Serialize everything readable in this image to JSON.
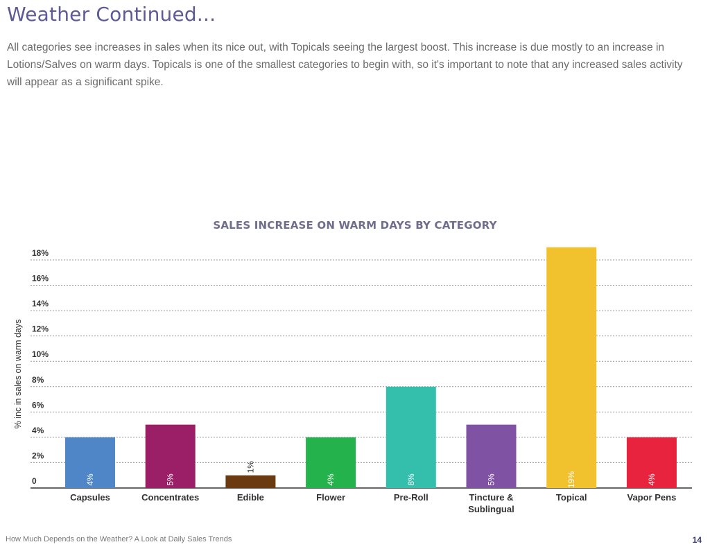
{
  "page": {
    "title": "Weather Continued...",
    "intro": "All categories see increases in sales when its nice out, with Topicals seeing the largest boost. This increase is due mostly to an increase in Lotions/Salves on warm days. Topicals is one of the smallest categories to begin with, so it's important to note that any increased sales activity will appear as a significant spike.",
    "footer": "How Much Depends on the Weather? A Look at Daily Sales Trends",
    "page_number": "14"
  },
  "chart_data": {
    "type": "bar",
    "title": "SALES INCREASE ON WARM DAYS BY CATEGORY",
    "ylabel": "% inc in sales on warm days",
    "xlabel": "",
    "categories": [
      "Capsules",
      "Concentrates",
      "Edible",
      "Flower",
      "Pre-Roll",
      "Tincture & Sublingual",
      "Topical",
      "Vapor Pens"
    ],
    "category_lines": [
      [
        "Capsules"
      ],
      [
        "Concentrates"
      ],
      [
        "Edible"
      ],
      [
        "Flower"
      ],
      [
        "Pre-Roll"
      ],
      [
        "Tincture &",
        "Sublingual"
      ],
      [
        "Topical"
      ],
      [
        "Vapor Pens"
      ]
    ],
    "values": [
      4,
      5,
      1,
      4,
      8,
      5,
      19,
      4
    ],
    "data_labels": [
      "4%",
      "5%",
      "1%",
      "4%",
      "8%",
      "5%",
      "19%",
      "4%"
    ],
    "colors": [
      "#4f86c8",
      "#9b1f66",
      "#6b3a10",
      "#23b24b",
      "#34bfad",
      "#8052a3",
      "#f2c12e",
      "#e8233e"
    ],
    "ylim": [
      0,
      18
    ],
    "yticks": [
      0,
      2,
      4,
      6,
      8,
      10,
      12,
      14,
      16,
      18
    ],
    "ytick_labels": [
      "0",
      "2%",
      "4%",
      "6%",
      "8%",
      "10%",
      "12%",
      "14%",
      "16%",
      "18%"
    ],
    "grid": true,
    "legend": "none"
  }
}
